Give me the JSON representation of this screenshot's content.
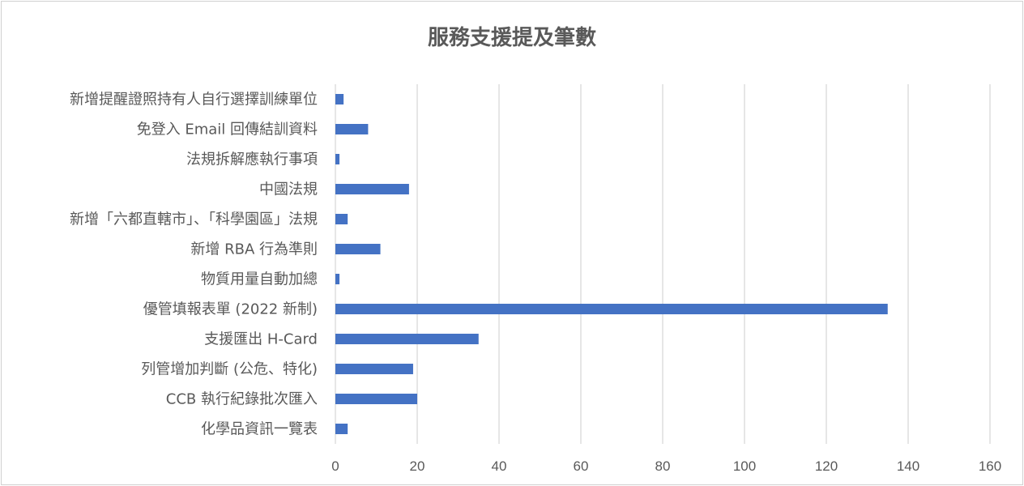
{
  "chart_data": {
    "type": "bar",
    "orientation": "horizontal",
    "title": "服務支援提及筆數",
    "categories": [
      "新增提醒證照持有人自行選擇訓練單位",
      "免登入 Email 回傳結訓資料",
      "法規拆解應執行事項",
      "中國法規",
      "新增「六都直轄市」、「科學園區」法規",
      "新增 RBA 行為準則",
      "物質用量自動加總",
      "優管填報表單 (2022 新制)",
      "支援匯出 H-Card",
      "列管增加判斷 (公危、特化)",
      "CCB 執行紀錄批次匯入",
      "化學品資訊一覽表"
    ],
    "values": [
      2,
      8,
      1,
      18,
      3,
      11,
      1,
      135,
      35,
      19,
      20,
      3
    ],
    "xlim": [
      0,
      160
    ],
    "xticks": [
      0,
      20,
      40,
      60,
      80,
      100,
      120,
      140,
      160
    ],
    "grid": "vertical",
    "bar_color": "#4472C4",
    "grid_color": "#D9D9D9",
    "text_color": "#595959"
  }
}
